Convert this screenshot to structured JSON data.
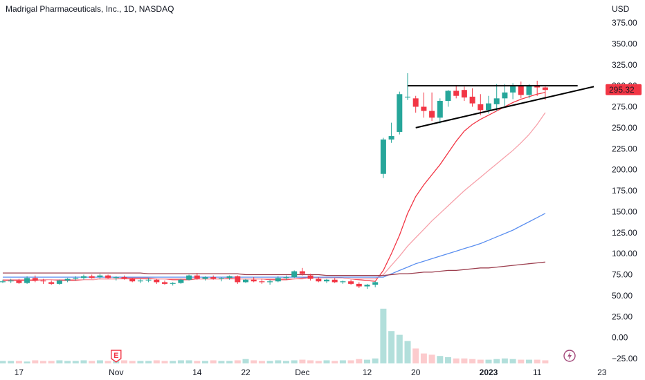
{
  "chart_data": {
    "type": "candlestick",
    "title": "Madrigal Pharmaceuticals, Inc., 1D, NASDAQ",
    "currency_label": "USD",
    "last_price_label": "295.32",
    "last_price": 295.32,
    "ylim": [
      -30,
      390
    ],
    "y_ticks": [
      375,
      350,
      325,
      300,
      275,
      250,
      225,
      200,
      175,
      150,
      125,
      100,
      75,
      50,
      25,
      0,
      -25
    ],
    "y_tick_labels": [
      "375.00",
      "350.00",
      "325.00",
      "300.00",
      "275.00",
      "250.00",
      "225.00",
      "200.00",
      "175.00",
      "150.00",
      "125.00",
      "100.00",
      "75.00",
      "50.00",
      "25.00",
      "0.00",
      "−25.00"
    ],
    "x_ticks": [
      {
        "label": "17",
        "bar": 2,
        "bold": false
      },
      {
        "label": "Nov",
        "bar": 14,
        "bold": false
      },
      {
        "label": "14",
        "bar": 24,
        "bold": false
      },
      {
        "label": "22",
        "bar": 30,
        "bold": false
      },
      {
        "label": "Dec",
        "bar": 37,
        "bold": false
      },
      {
        "label": "12",
        "bar": 45,
        "bold": false
      },
      {
        "label": "20",
        "bar": 51,
        "bold": false
      },
      {
        "label": "2023",
        "bar": 60,
        "bold": true
      },
      {
        "label": "11",
        "bar": 66,
        "bold": false
      },
      {
        "label": "23",
        "bar": 74,
        "bold": false
      }
    ],
    "ohlc": [
      [
        67,
        69,
        65,
        67
      ],
      [
        67,
        70,
        65,
        68
      ],
      [
        68,
        70,
        64,
        65
      ],
      [
        65,
        73,
        64,
        71
      ],
      [
        71,
        74,
        66,
        68
      ],
      [
        68,
        70,
        64,
        67
      ],
      [
        66,
        68,
        63,
        64
      ],
      [
        64,
        69,
        63,
        68
      ],
      [
        68,
        71,
        66,
        70
      ],
      [
        70,
        73,
        68,
        71
      ],
      [
        71,
        75,
        69,
        73
      ],
      [
        73,
        75,
        70,
        71
      ],
      [
        72,
        76,
        70,
        74
      ],
      [
        74,
        75,
        70,
        71
      ],
      [
        71,
        73,
        68,
        72
      ],
      [
        72,
        74,
        69,
        70
      ],
      [
        70,
        71,
        66,
        67
      ],
      [
        67,
        70,
        65,
        68
      ],
      [
        68,
        71,
        66,
        69
      ],
      [
        69,
        70,
        64,
        66
      ],
      [
        66,
        68,
        63,
        64
      ],
      [
        64,
        66,
        62,
        65
      ],
      [
        65,
        70,
        64,
        69
      ],
      [
        69,
        75,
        68,
        74
      ],
      [
        74,
        77,
        69,
        70
      ],
      [
        70,
        73,
        68,
        72
      ],
      [
        72,
        74,
        69,
        70
      ],
      [
        70,
        72,
        67,
        71
      ],
      [
        71,
        74,
        69,
        73
      ],
      [
        73,
        74,
        64,
        66
      ],
      [
        66,
        70,
        65,
        69
      ],
      [
        69,
        72,
        66,
        67
      ],
      [
        67,
        70,
        64,
        66
      ],
      [
        66,
        69,
        63,
        67
      ],
      [
        67,
        73,
        66,
        71
      ],
      [
        71,
        74,
        69,
        72
      ],
      [
        72,
        80,
        71,
        79
      ],
      [
        79,
        83,
        74,
        76
      ],
      [
        74,
        76,
        68,
        70
      ],
      [
        70,
        72,
        66,
        67
      ],
      [
        67,
        70,
        65,
        69
      ],
      [
        69,
        71,
        65,
        66
      ],
      [
        66,
        68,
        64,
        67
      ],
      [
        67,
        69,
        63,
        64
      ],
      [
        64,
        66,
        59,
        61
      ],
      [
        61,
        64,
        58,
        63
      ],
      [
        63,
        67,
        60,
        66
      ],
      [
        195,
        238,
        190,
        236
      ],
      [
        236,
        256,
        232,
        240
      ],
      [
        245,
        293,
        242,
        290
      ],
      [
        286,
        315,
        283,
        287
      ],
      [
        285,
        288,
        268,
        275
      ],
      [
        275,
        292,
        262,
        270
      ],
      [
        270,
        292,
        258,
        262
      ],
      [
        262,
        285,
        255,
        282
      ],
      [
        282,
        295,
        275,
        294
      ],
      [
        294,
        301,
        285,
        288
      ],
      [
        295,
        299,
        282,
        286
      ],
      [
        287,
        297,
        275,
        279
      ],
      [
        278,
        290,
        265,
        271
      ],
      [
        271,
        288,
        267,
        279
      ],
      [
        278,
        302,
        270,
        285
      ],
      [
        285,
        302,
        276,
        292
      ],
      [
        292,
        303,
        284,
        300
      ],
      [
        300,
        305,
        285,
        289
      ],
      [
        289,
        302,
        285,
        300
      ],
      [
        300,
        306,
        288,
        298
      ],
      [
        298,
        299,
        283,
        295
      ]
    ],
    "volume": [
      4,
      4,
      4,
      3,
      5,
      4,
      4,
      5,
      4,
      4,
      5,
      4,
      5,
      4,
      4,
      5,
      4,
      4,
      4,
      5,
      4,
      4,
      5,
      5,
      4,
      4,
      5,
      4,
      4,
      5,
      7,
      5,
      4,
      4,
      5,
      4,
      5,
      6,
      5,
      4,
      5,
      4,
      5,
      5,
      7,
      6,
      8,
      88,
      52,
      46,
      36,
      24,
      16,
      14,
      12,
      10,
      8,
      8,
      7,
      6,
      6,
      7,
      8,
      7,
      6,
      6,
      6,
      5
    ],
    "ma_series": [
      {
        "color": "#f23645",
        "values": [
          68,
          68,
          68,
          68,
          68,
          69,
          69,
          68,
          68,
          68,
          69,
          69,
          70,
          70,
          70,
          71,
          71,
          71,
          71,
          70,
          70,
          69,
          69,
          69,
          70,
          70,
          70,
          70,
          71,
          70,
          70,
          70,
          70,
          69,
          69,
          69,
          70,
          71,
          72,
          72,
          72,
          72,
          71,
          70,
          69,
          68,
          67,
          80,
          100,
          122,
          148,
          168,
          182,
          194,
          206,
          220,
          234,
          246,
          254,
          260,
          265,
          270,
          275,
          280,
          284,
          287,
          290,
          292
        ]
      },
      {
        "color": "#f7a1aa",
        "values": [
          69,
          69,
          69,
          69,
          69,
          69,
          69,
          69,
          69,
          69,
          69,
          69,
          70,
          70,
          70,
          70,
          70,
          70,
          70,
          70,
          70,
          70,
          70,
          70,
          70,
          70,
          70,
          70,
          70,
          70,
          70,
          70,
          70,
          70,
          70,
          70,
          70,
          70,
          71,
          71,
          71,
          71,
          71,
          70,
          70,
          70,
          70,
          75,
          86,
          97,
          109,
          119,
          129,
          139,
          148,
          157,
          166,
          175,
          183,
          191,
          199,
          207,
          215,
          223,
          232,
          242,
          254,
          268
        ]
      },
      {
        "color": "#5b8ff0",
        "values": [
          72,
          72,
          72,
          72,
          72,
          72,
          72,
          72,
          72,
          72,
          72,
          72,
          72,
          72,
          72,
          72,
          72,
          72,
          72,
          72,
          72,
          72,
          72,
          72,
          72,
          72,
          72,
          72,
          72,
          72,
          72,
          72,
          72,
          72,
          72,
          72,
          72,
          72,
          72,
          72,
          72,
          72,
          72,
          72,
          72,
          72,
          72,
          72,
          76,
          80,
          84,
          88,
          91,
          94,
          97,
          100,
          103,
          106,
          109,
          112,
          116,
          120,
          124,
          128,
          133,
          138,
          143,
          148
        ]
      },
      {
        "color": "#9c3e4e",
        "values": [
          77,
          77,
          77,
          77,
          77,
          77,
          77,
          77,
          77,
          77,
          77,
          77,
          77,
          77,
          77,
          77,
          77,
          77,
          76,
          76,
          76,
          76,
          76,
          76,
          76,
          76,
          76,
          76,
          76,
          76,
          75,
          75,
          75,
          75,
          75,
          75,
          75,
          75,
          75,
          75,
          74,
          74,
          74,
          74,
          74,
          74,
          74,
          74,
          75,
          76,
          76,
          77,
          78,
          78,
          79,
          80,
          80,
          81,
          82,
          83,
          83,
          84,
          85,
          86,
          87,
          88,
          89,
          90
        ]
      }
    ],
    "trendlines": [
      {
        "from": [
          50,
          300
        ],
        "to": [
          71,
          300
        ]
      },
      {
        "from": [
          51,
          250
        ],
        "to": [
          73,
          299
        ]
      }
    ],
    "events": [
      {
        "type": "earnings",
        "bar": 14,
        "label": "E"
      },
      {
        "type": "dividend",
        "bar": 70
      }
    ],
    "colors": {
      "up": "#26a69a",
      "down": "#f23645",
      "up_vol": "#b2dfdb",
      "down_vol": "#fccbcd"
    }
  }
}
